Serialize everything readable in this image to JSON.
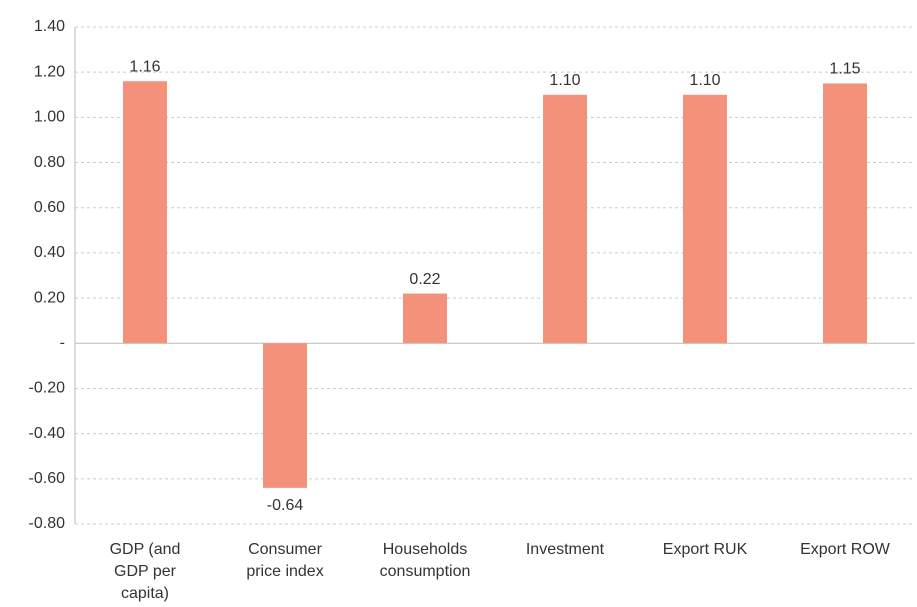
{
  "chart_data": {
    "type": "bar",
    "categories": [
      "GDP (and GDP per capita)",
      "Consumer price index",
      "Households consumption",
      "Investment",
      "Export RUK",
      "Export ROW"
    ],
    "values": [
      1.16,
      -0.64,
      0.22,
      1.1,
      1.1,
      1.15
    ],
    "value_labels": [
      "1.16",
      "-0.64",
      "0.22",
      "1.10",
      "1.10",
      "1.15"
    ],
    "color": "#f4917a",
    "ylim": [
      -0.8,
      1.4
    ],
    "yticks": [
      {
        "value": 1.4,
        "label": "1.40"
      },
      {
        "value": 1.2,
        "label": "1.20"
      },
      {
        "value": 1.0,
        "label": "1.00"
      },
      {
        "value": 0.8,
        "label": "0.80"
      },
      {
        "value": 0.6,
        "label": "0.60"
      },
      {
        "value": 0.4,
        "label": "0.40"
      },
      {
        "value": 0.2,
        "label": "0.20"
      },
      {
        "value": 0,
        "label": "-"
      },
      {
        "value": -0.2,
        "label": "-0.20"
      },
      {
        "value": -0.4,
        "label": "-0.40"
      },
      {
        "value": -0.6,
        "label": "-0.60"
      },
      {
        "value": -0.8,
        "label": "-0.80"
      }
    ],
    "grid": true
  }
}
